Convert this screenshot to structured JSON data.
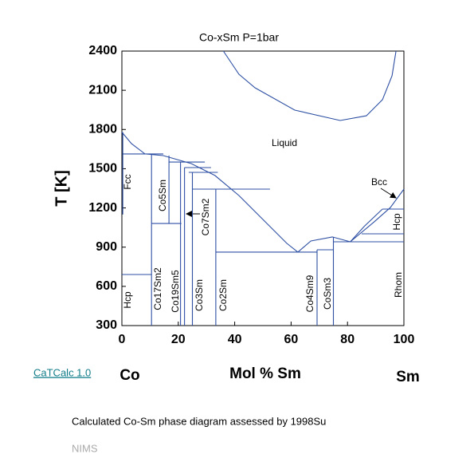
{
  "chart_data": {
    "type": "phase_diagram",
    "title": "Co-xSm     P=1bar",
    "x_label": "Mol % Sm",
    "y_label": "T [K]",
    "x_left_label": "Co",
    "x_right_label": "Sm",
    "xlim": [
      0,
      100
    ],
    "xticks": [
      0,
      20,
      40,
      60,
      80,
      100
    ],
    "ylim": [
      300,
      2400
    ],
    "yticks": [
      300,
      600,
      900,
      1200,
      1500,
      1800,
      2100,
      2400
    ],
    "line_color": "#2d4fa3",
    "phase_labels": [
      "Liquid",
      "Bcc",
      "Fcc",
      "Co5Sm",
      "Co7Sm2",
      "Hcp",
      "Hcp",
      "Co17Sm2",
      "Co19Sm5",
      "Co3Sm",
      "Co2Sm",
      "Co4Sm9",
      "CoSm3",
      "Rhom"
    ],
    "series": [
      {
        "x": [
          36,
          41.5,
          47.2,
          61.3,
          77.4,
          86.7,
          92.4,
          95.8,
          97.2
        ],
        "y": [
          2400,
          2223,
          2119,
          1948,
          1869,
          1905,
          2028,
          2211,
          2400
        ]
      },
      {
        "x": [
          0,
          3.4,
          8.2,
          14.7,
          24.6,
          33,
          41.5,
          50,
          58.5,
          62.4
        ],
        "y": [
          1780,
          1692,
          1613,
          1600,
          1539,
          1448,
          1295,
          1112,
          929,
          862
        ]
      },
      {
        "x": [
          62.4,
          67,
          74.6,
          81
        ],
        "y": [
          862,
          947,
          978,
          941
        ]
      },
      {
        "x": [
          81,
          89.5,
          95.2,
          100
        ],
        "y": [
          941,
          1094,
          1203,
          1344
        ]
      },
      {
        "x": [
          0.3,
          0.3
        ],
        "y": [
          1780,
          1150
        ]
      },
      {
        "x": [
          0.3,
          14.7
        ],
        "y": [
          1613,
          1613
        ]
      },
      {
        "x": [
          10.5,
          10.5
        ],
        "y": [
          1613,
          300
        ]
      },
      {
        "x": [
          0,
          10.5
        ],
        "y": [
          691,
          691
        ]
      },
      {
        "x": [
          10.5,
          21.1
        ],
        "y": [
          1081,
          1081
        ]
      },
      {
        "x": [
          16.7,
          16.7
        ],
        "y": [
          1600,
          1081
        ]
      },
      {
        "x": [
          16.7,
          29.4
        ],
        "y": [
          1551,
          1551
        ]
      },
      {
        "x": [
          20.8,
          20.8
        ],
        "y": [
          1551,
          300
        ]
      },
      {
        "x": [
          22.2,
          31.6
        ],
        "y": [
          1509,
          1509
        ]
      },
      {
        "x": [
          22.2,
          22.2
        ],
        "y": [
          1509,
          300
        ]
      },
      {
        "x": [
          23.7,
          34
        ],
        "y": [
          1472,
          1472
        ]
      },
      {
        "x": [
          25,
          25
        ],
        "y": [
          1472,
          300
        ]
      },
      {
        "x": [
          25,
          52.5
        ],
        "y": [
          1344,
          1344
        ]
      },
      {
        "x": [
          33.3,
          33.3
        ],
        "y": [
          1344,
          300
        ]
      },
      {
        "x": [
          33.3,
          69.2
        ],
        "y": [
          862,
          862
        ]
      },
      {
        "x": [
          69.2,
          69.2
        ],
        "y": [
          880,
          300
        ]
      },
      {
        "x": [
          69.2,
          75
        ],
        "y": [
          880,
          880
        ]
      },
      {
        "x": [
          75,
          75
        ],
        "y": [
          978,
          300
        ]
      },
      {
        "x": [
          75,
          100
        ],
        "y": [
          941,
          941
        ]
      },
      {
        "x": [
          85,
          100
        ],
        "y": [
          1002,
          1002
        ]
      },
      {
        "x": [
          92.4,
          100
        ],
        "y": [
          1191,
          1191
        ]
      },
      {
        "x": [
          81,
          86,
          92.4
        ],
        "y": [
          941,
          1060,
          1191
        ]
      }
    ]
  },
  "link": "CaTCalc 1.0",
  "caption": "Calculated Co-Sm phase diagram assessed by 1998Su",
  "footer": "NIMS"
}
